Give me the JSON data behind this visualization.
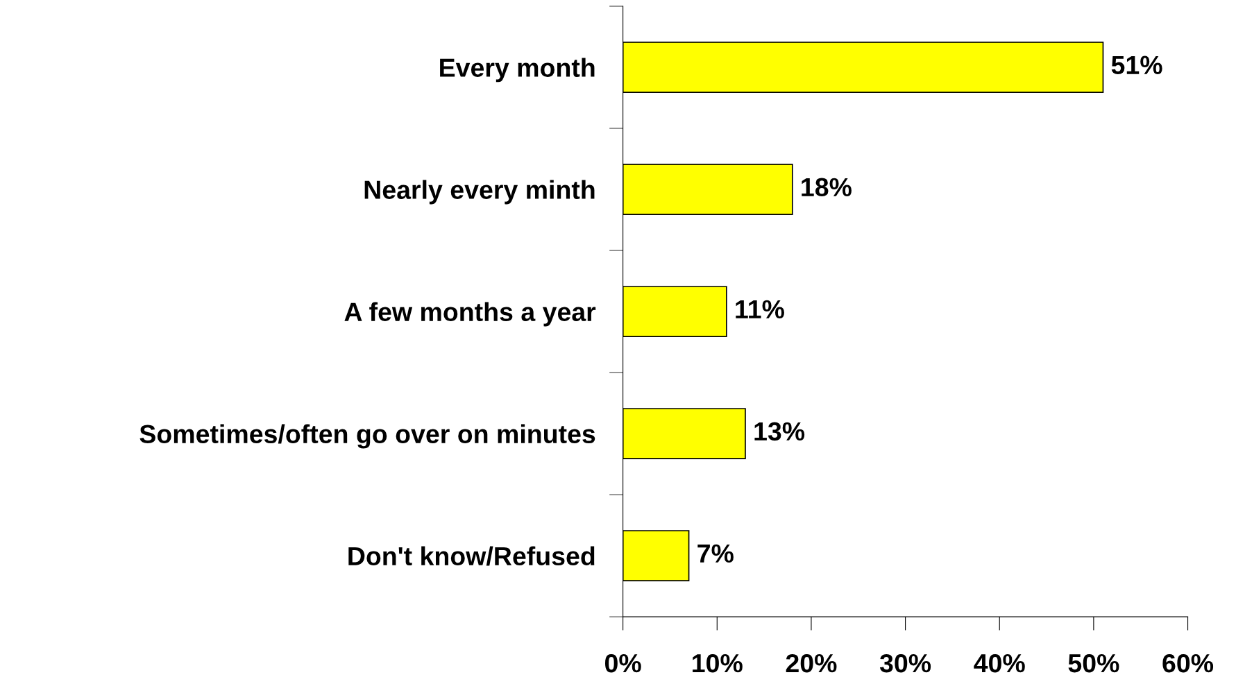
{
  "chart_data": {
    "type": "bar",
    "orientation": "horizontal",
    "categories": [
      "Every month",
      "Nearly every minth",
      "A few months a year",
      "Sometimes/often go over on minutes",
      "Don't know/Refused"
    ],
    "values": [
      51,
      18,
      11,
      13,
      7
    ],
    "value_labels": [
      "51%",
      "18%",
      "11%",
      "13%",
      "7%"
    ],
    "color": "#ffff00",
    "xlim": [
      0,
      60
    ],
    "xticks": [
      {
        "value": 0,
        "label": "0%"
      },
      {
        "value": 10,
        "label": "10%"
      },
      {
        "value": 20,
        "label": "20%"
      },
      {
        "value": 30,
        "label": "30%"
      },
      {
        "value": 40,
        "label": "40%"
      },
      {
        "value": 50,
        "label": "50%"
      },
      {
        "value": 60,
        "label": "60%"
      }
    ],
    "grid": false,
    "legend": false
  }
}
